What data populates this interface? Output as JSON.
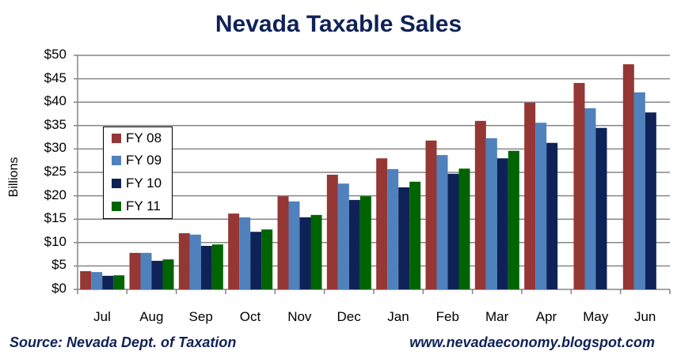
{
  "title": "Nevada Taxable Sales",
  "footer": {
    "source": "Source: Nevada Dept. of Taxation",
    "url": "www.nevadaeconomy.blogspot.com"
  },
  "colors": {
    "FY 08": "#953735",
    "FY 09": "#4f81bd",
    "FY 10": "#0f2257",
    "FY 11": "#006400",
    "gridline": "#868686",
    "title": "#0f2257"
  },
  "chart_data": {
    "type": "bar",
    "title": "Nevada Taxable Sales",
    "xlabel": "",
    "ylabel": "Billions",
    "ylim": [
      0,
      50
    ],
    "yticks": [
      "$0",
      "$5",
      "$10",
      "$15",
      "$20",
      "$25",
      "$30",
      "$35",
      "$40",
      "$45",
      "$50"
    ],
    "grid": true,
    "legend_position": "upper-left inside",
    "categories": [
      "Jul",
      "Aug",
      "Sep",
      "Oct",
      "Nov",
      "Dec",
      "Jan",
      "Feb",
      "Mar",
      "Apr",
      "May",
      "Jun"
    ],
    "series": [
      {
        "name": "FY 08",
        "values": [
          3.9,
          7.8,
          12.0,
          16.2,
          19.9,
          24.5,
          28.0,
          31.8,
          36.0,
          39.9,
          44.1,
          48.1
        ]
      },
      {
        "name": "FY 09",
        "values": [
          3.7,
          7.8,
          11.7,
          15.4,
          18.8,
          22.6,
          25.7,
          28.7,
          32.3,
          35.6,
          38.7,
          42.1
        ]
      },
      {
        "name": "FY 10",
        "values": [
          2.9,
          6.1,
          9.3,
          12.3,
          15.4,
          19.1,
          21.8,
          24.7,
          28.0,
          31.3,
          34.5,
          37.8
        ]
      },
      {
        "name": "FY 11",
        "values": [
          3.0,
          6.4,
          9.6,
          12.8,
          15.9,
          19.9,
          23.0,
          25.8,
          29.6,
          null,
          null,
          null
        ]
      }
    ]
  }
}
